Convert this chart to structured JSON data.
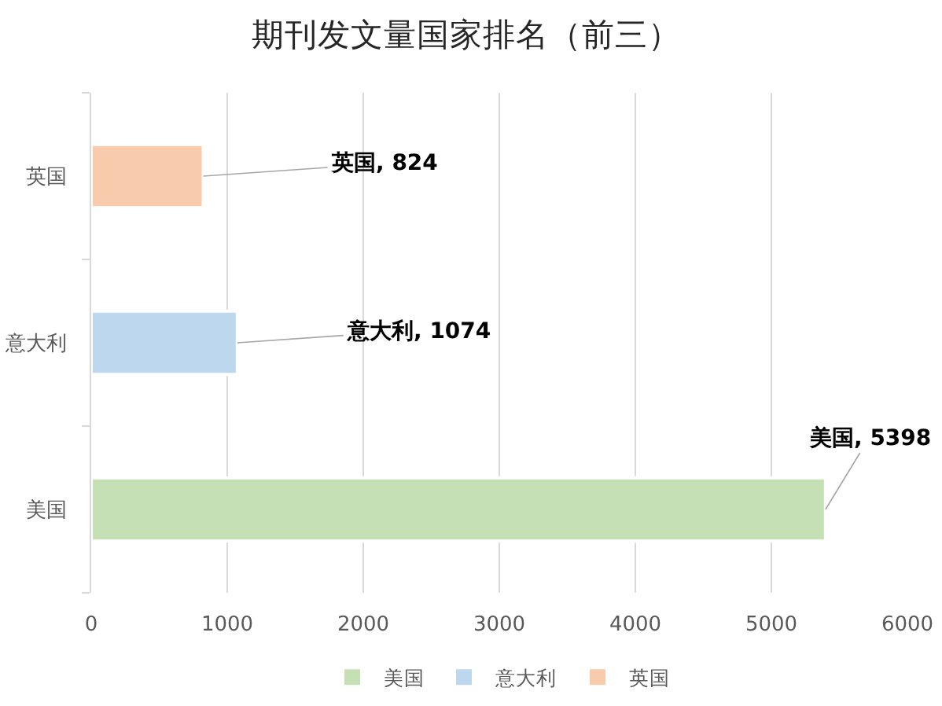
{
  "chart_data": {
    "type": "bar",
    "title": "期刊发文量国家排名（前三）",
    "orientation": "horizontal",
    "categories": [
      "英国",
      "意大利",
      "美国"
    ],
    "series": [
      {
        "name": "美国",
        "color": "#c5e0b4",
        "values": [
          null,
          null,
          5398
        ],
        "value_labels": [
          null,
          null,
          "美国, 5398"
        ]
      },
      {
        "name": "意大利",
        "color": "#bdd7ee",
        "values": [
          null,
          1074,
          null
        ],
        "value_labels": [
          null,
          "意大利, 1074",
          null
        ]
      },
      {
        "name": "英国",
        "color": "#f8cbad",
        "values": [
          824,
          null,
          null
        ],
        "value_labels": [
          "英国, 824",
          null,
          null
        ]
      }
    ],
    "xlim": [
      0,
      6000
    ],
    "xticks": [
      0,
      1000,
      2000,
      3000,
      4000,
      5000,
      6000
    ],
    "grid": "x",
    "legend": "bottom"
  }
}
